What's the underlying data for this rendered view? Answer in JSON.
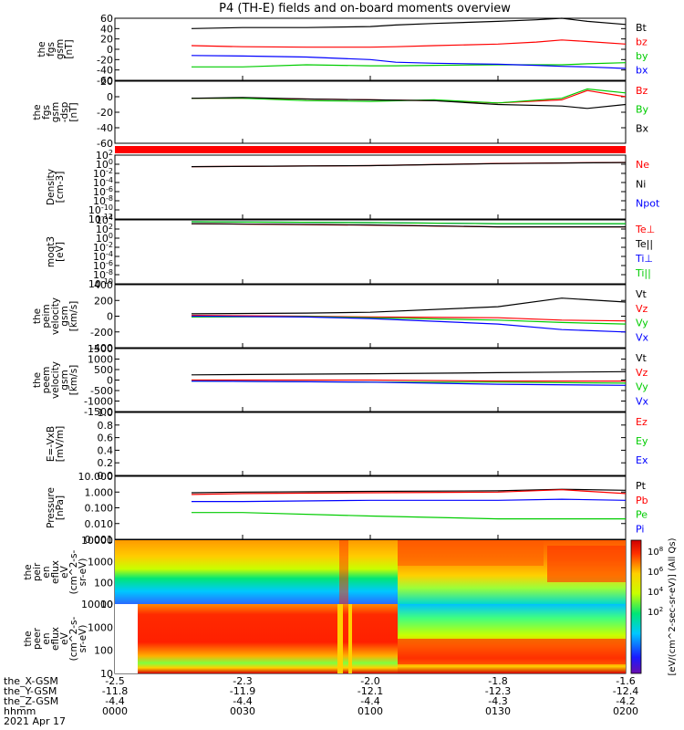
{
  "title": "P4 (TH-E) fields and on-board moments overview",
  "panels": [
    {
      "ylabel": [
        "the",
        "fgs",
        "gsm",
        "[nT]"
      ],
      "yticks": [
        "60",
        "40",
        "20",
        "0",
        "-20",
        "-40",
        "-60"
      ],
      "legend": [
        {
          "text": "Bt",
          "color": "#000000"
        },
        {
          "text": "bz",
          "color": "#ff0000"
        },
        {
          "text": "by",
          "color": "#00cc00"
        },
        {
          "text": "bx",
          "color": "#0000ff"
        }
      ]
    },
    {
      "ylabel": [
        "the",
        "fgs",
        "gsm",
        "-dsp",
        "[nT]"
      ],
      "yticks": [
        "20",
        "0",
        "-20",
        "-40",
        "-60"
      ],
      "legend": [
        {
          "text": "Bz",
          "color": "#ff0000"
        },
        {
          "text": "By",
          "color": "#00cc00"
        },
        {
          "text": "Bx",
          "color": "#000000"
        }
      ]
    },
    {
      "ylabel": [
        "Density",
        "[cm-3]"
      ],
      "yticks": [
        "10^2",
        "10^0",
        "10^-2",
        "10^-4",
        "10^-6",
        "10^-8",
        "10^-10",
        "10^-12"
      ],
      "legend": [
        {
          "text": "Ne",
          "color": "#ff0000"
        },
        {
          "text": "Ni",
          "color": "#000000"
        },
        {
          "text": "Npot",
          "color": "#0000ff"
        }
      ]
    },
    {
      "ylabel": [
        "moqt3",
        "[eV]"
      ],
      "yticks": [
        "10^4",
        "10^2",
        "10^0",
        "10^-2",
        "10^-4",
        "10^-6",
        "10^-8",
        "10^-10"
      ],
      "legend": [
        {
          "text": "Te⊥",
          "color": "#ff0000"
        },
        {
          "text": "Te||",
          "color": "#000000"
        },
        {
          "text": "Ti⊥",
          "color": "#0000ff"
        },
        {
          "text": "Ti||",
          "color": "#00cc00"
        }
      ]
    },
    {
      "ylabel": [
        "the",
        "peim",
        "velocity",
        "gsm",
        "[km/s]"
      ],
      "yticks": [
        "400",
        "200",
        "0",
        "-200",
        "-400"
      ],
      "legend": [
        {
          "text": "Vt",
          "color": "#000000"
        },
        {
          "text": "Vz",
          "color": "#ff0000"
        },
        {
          "text": "Vy",
          "color": "#00cc00"
        },
        {
          "text": "Vx",
          "color": "#0000ff"
        }
      ]
    },
    {
      "ylabel": [
        "the",
        "peem",
        "velocity",
        "gsm",
        "[km/s]"
      ],
      "yticks": [
        "1500",
        "1000",
        "500",
        "0",
        "-500",
        "-1000",
        "-1500"
      ],
      "legend": [
        {
          "text": "Vt",
          "color": "#000000"
        },
        {
          "text": "Vz",
          "color": "#ff0000"
        },
        {
          "text": "Vy",
          "color": "#00cc00"
        },
        {
          "text": "Vx",
          "color": "#0000ff"
        }
      ]
    },
    {
      "ylabel": [
        "E=-VxB",
        "[mV/m]"
      ],
      "yticks": [
        "1.0",
        "0.8",
        "0.6",
        "0.4",
        "0.2",
        "0.0"
      ],
      "legend": [
        {
          "text": "Ez",
          "color": "#ff0000"
        },
        {
          "text": "Ey",
          "color": "#00cc00"
        },
        {
          "text": "Ex",
          "color": "#0000ff"
        }
      ]
    },
    {
      "ylabel": [
        "Pressure",
        "[nPa]"
      ],
      "yticks": [
        "10.000",
        "1.000",
        "0.100",
        "0.010",
        "0.001"
      ],
      "legend": [
        {
          "text": "Pt",
          "color": "#000000"
        },
        {
          "text": "Pb",
          "color": "#ff0000"
        },
        {
          "text": "Pe",
          "color": "#00cc00"
        },
        {
          "text": "Pi",
          "color": "#0000ff"
        }
      ]
    },
    {
      "ylabel": [
        "the",
        "peir",
        "en",
        "eflux",
        "eV",
        "(cm^2-s-",
        "sr-eV)"
      ],
      "yticks": [
        "10000",
        "1000",
        "100",
        "10"
      ]
    },
    {
      "ylabel": [
        "the",
        "peer",
        "en",
        "eflux",
        "eV",
        "(cm^2-s-",
        "sr-eV)"
      ],
      "yticks": [
        "10000",
        "1000",
        "100",
        "10"
      ]
    }
  ],
  "colorbar": {
    "label": "[eV/(cm^2-sec-sr-eV)] (All Qs)",
    "ticks": [
      "10^8",
      "10^6",
      "10^4",
      "10^2"
    ]
  },
  "footer": {
    "rows": [
      {
        "label": "the_X-GSM",
        "values": [
          "-2.5",
          "-2.3",
          "-2.0",
          "-1.8",
          "-1.6"
        ]
      },
      {
        "label": "the_Y-GSM",
        "values": [
          "-11.8",
          "-11.9",
          "-12.1",
          "-12.3",
          "-12.4"
        ]
      },
      {
        "label": "the_Z-GSM",
        "values": [
          "-4.4",
          "-4.4",
          "-4.4",
          "-4.3",
          "-4.2"
        ]
      },
      {
        "label": "hhmm",
        "values": [
          "0000",
          "0030",
          "0100",
          "0130",
          "0200"
        ]
      }
    ],
    "date": "2021 Apr 17"
  },
  "chart_data": {
    "type": "line",
    "x_unit": "hhmm",
    "x_range": [
      "0000",
      "0200"
    ],
    "panels": [
      {
        "name": "fgs gsm",
        "ylim": [
          -60,
          60
        ],
        "x": [
          0.3,
          0.5,
          0.75,
          1.0,
          1.1,
          1.25,
          1.5,
          1.65,
          1.75,
          1.85,
          2.0
        ],
        "series": [
          {
            "name": "Bt",
            "color": "#000000",
            "values": [
              40,
              42,
              42,
              44,
              47,
              50,
              54,
              57,
              60,
              54,
              48
            ]
          },
          {
            "name": "bz",
            "color": "#ff0000",
            "values": [
              7,
              5,
              4,
              4,
              5,
              7,
              10,
              14,
              18,
              15,
              10
            ]
          },
          {
            "name": "by",
            "color": "#00cc00",
            "values": [
              -34,
              -34,
              -30,
              -32,
              -32,
              -31,
              -30,
              -30,
              -30,
              -28,
              -26
            ]
          },
          {
            "name": "bx",
            "color": "#0000ff",
            "values": [
              -12,
              -13,
              -15,
              -20,
              -25,
              -27,
              -29,
              -31,
              -33,
              -34,
              -37
            ]
          }
        ]
      },
      {
        "name": "fgs gsm-dsp",
        "ylim": [
          -60,
          20
        ],
        "x": [
          0.3,
          0.5,
          0.75,
          1.0,
          1.25,
          1.5,
          1.75,
          1.85,
          2.0
        ],
        "series": [
          {
            "name": "Bz",
            "color": "#ff0000",
            "values": [
              -2,
              -2,
              -3,
              -4,
              -5,
              -8,
              -4,
              8,
              0
            ]
          },
          {
            "name": "By",
            "color": "#00cc00",
            "values": [
              -2,
              -2,
              -5,
              -6,
              -4,
              -8,
              -2,
              10,
              5
            ]
          },
          {
            "name": "Bx",
            "color": "#000000",
            "values": [
              -2,
              -1,
              -3,
              -4,
              -5,
              -10,
              -12,
              -15,
              -10
            ]
          }
        ]
      },
      {
        "name": "Density",
        "scale": "log",
        "ylim": [
          1e-12,
          100
        ],
        "x": [
          0.3,
          1.0,
          1.5,
          2.0
        ],
        "series": [
          {
            "name": "Ne",
            "color": "#ff0000",
            "values": [
              0.3,
              0.5,
              1.5,
              2.5
            ]
          },
          {
            "name": "Ni",
            "color": "#000000",
            "values": [
              0.3,
              0.5,
              1.4,
              2.4
            ]
          }
        ]
      },
      {
        "name": "moqt3",
        "scale": "log",
        "ylim": [
          1e-10,
          10000
        ],
        "x": [
          0.3,
          1.0,
          1.5,
          2.0
        ],
        "series": [
          {
            "name": "Te⊥",
            "color": "#ff0000",
            "values": [
              1500,
              700,
              300,
              300
            ]
          },
          {
            "name": "Te||",
            "color": "#000000",
            "values": [
              1500,
              800,
              300,
              300
            ]
          },
          {
            "name": "Ti⊥",
            "color": "#0000ff",
            "values": [
              4000,
              2500,
              1500,
              1500
            ]
          },
          {
            "name": "Ti||",
            "color": "#00cc00",
            "values": [
              4000,
              2500,
              1500,
              1500
            ]
          }
        ]
      },
      {
        "name": "peim velocity",
        "ylim": [
          -400,
          400
        ],
        "x": [
          0.3,
          0.75,
          1.0,
          1.5,
          1.75,
          2.0
        ],
        "series": [
          {
            "name": "Vt",
            "color": "#000000",
            "values": [
              30,
              40,
              50,
              120,
              230,
              180
            ]
          },
          {
            "name": "Vz",
            "color": "#ff0000",
            "values": [
              10,
              0,
              -10,
              -20,
              -50,
              -60
            ]
          },
          {
            "name": "Vy",
            "color": "#00cc00",
            "values": [
              -10,
              -5,
              -20,
              -50,
              -80,
              -100
            ]
          },
          {
            "name": "Vx",
            "color": "#0000ff",
            "values": [
              0,
              -10,
              -30,
              -100,
              -170,
              -200
            ]
          }
        ]
      },
      {
        "name": "peem velocity",
        "ylim": [
          -1500,
          1500
        ],
        "x": [
          0.3,
          1.0,
          1.5,
          2.0
        ],
        "series": [
          {
            "name": "Vt",
            "color": "#000000",
            "values": [
              250,
              300,
              350,
              400
            ]
          },
          {
            "name": "Vz",
            "color": "#ff0000",
            "values": [
              0,
              0,
              -50,
              -50
            ]
          },
          {
            "name": "Vy",
            "color": "#00cc00",
            "values": [
              -50,
              -100,
              -100,
              -150
            ]
          },
          {
            "name": "Vx",
            "color": "#0000ff",
            "values": [
              -50,
              -100,
              -200,
              -250
            ]
          }
        ]
      },
      {
        "name": "E=-VxB",
        "ylim": [
          0,
          1
        ],
        "series": []
      },
      {
        "name": "Pressure",
        "scale": "log",
        "ylim": [
          0.001,
          10
        ],
        "x": [
          0.3,
          0.5,
          1.0,
          1.5,
          1.75,
          2.0
        ],
        "series": [
          {
            "name": "Pt",
            "color": "#000000",
            "values": [
              0.9,
              1.0,
              1.1,
              1.2,
              1.5,
              1.3
            ]
          },
          {
            "name": "Pb",
            "color": "#ff0000",
            "values": [
              0.7,
              0.8,
              0.9,
              1.0,
              1.4,
              0.8
            ]
          },
          {
            "name": "Pe",
            "color": "#00cc00",
            "values": [
              0.05,
              0.05,
              0.03,
              0.02,
              0.02,
              0.02
            ]
          },
          {
            "name": "Pi",
            "color": "#0000ff",
            "values": [
              0.25,
              0.25,
              0.3,
              0.3,
              0.35,
              0.3
            ]
          }
        ]
      }
    ]
  }
}
